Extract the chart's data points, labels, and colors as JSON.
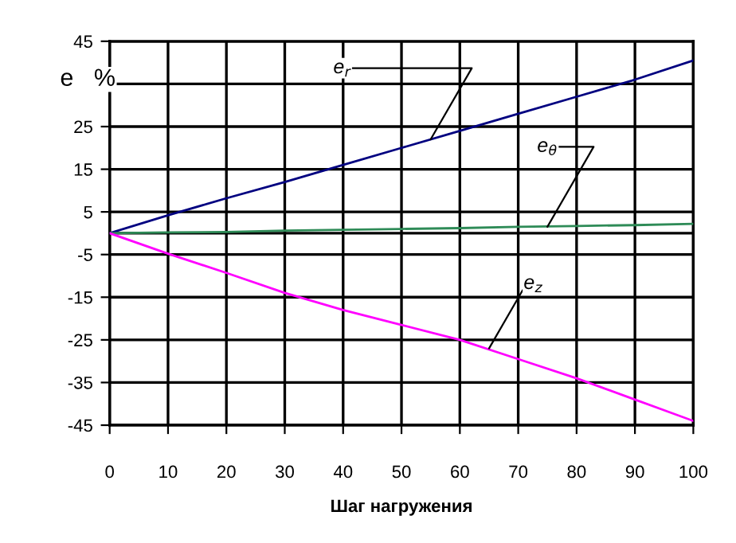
{
  "chart_data": {
    "type": "line",
    "xlabel": "Шаг нагружения",
    "ylabel": "e   %",
    "x": [
      0,
      10,
      20,
      30,
      40,
      50,
      60,
      70,
      80,
      90,
      100
    ],
    "series": [
      {
        "color": "#000080",
        "values": [
          0,
          4.2,
          8.2,
          12,
          16,
          20,
          24,
          28,
          32,
          36,
          40.5
        ]
      },
      {
        "color": "#2e8b57",
        "values": [
          0,
          0.2,
          0.3,
          0.6,
          0.8,
          1.0,
          1.2,
          1.5,
          1.7,
          1.9,
          2.2
        ]
      },
      {
        "color": "#ff00ff",
        "values": [
          0,
          -4.8,
          -9.3,
          -14,
          -18,
          -21.5,
          -25,
          -29.5,
          -34,
          -39,
          -44
        ]
      }
    ],
    "annotations": [
      {
        "text": "e$_{r}$",
        "x": 55,
        "y": 22
      },
      {
        "text": "e$_{θ}$",
        "x": 75,
        "y": 1.5
      },
      {
        "text": "e$_{z}$",
        "x": 65,
        "y": -27
      }
    ],
    "ref_lines": [
      {
        "axis": "y",
        "value": 0,
        "color": "#000000"
      }
    ],
    "xlim": [
      0,
      100
    ],
    "xticks": [
      0,
      10,
      20,
      30,
      40,
      50,
      60,
      70,
      80,
      90,
      100
    ],
    "ylim": [
      -45,
      45
    ],
    "yticks": [
      -45,
      -35,
      -25,
      -15,
      -5,
      5,
      15,
      25,
      {
        "value": 35,
        "label": null
      },
      45
    ],
    "grid": true,
    "legend": false,
    "marker": "none",
    "line_style": "solid"
  }
}
